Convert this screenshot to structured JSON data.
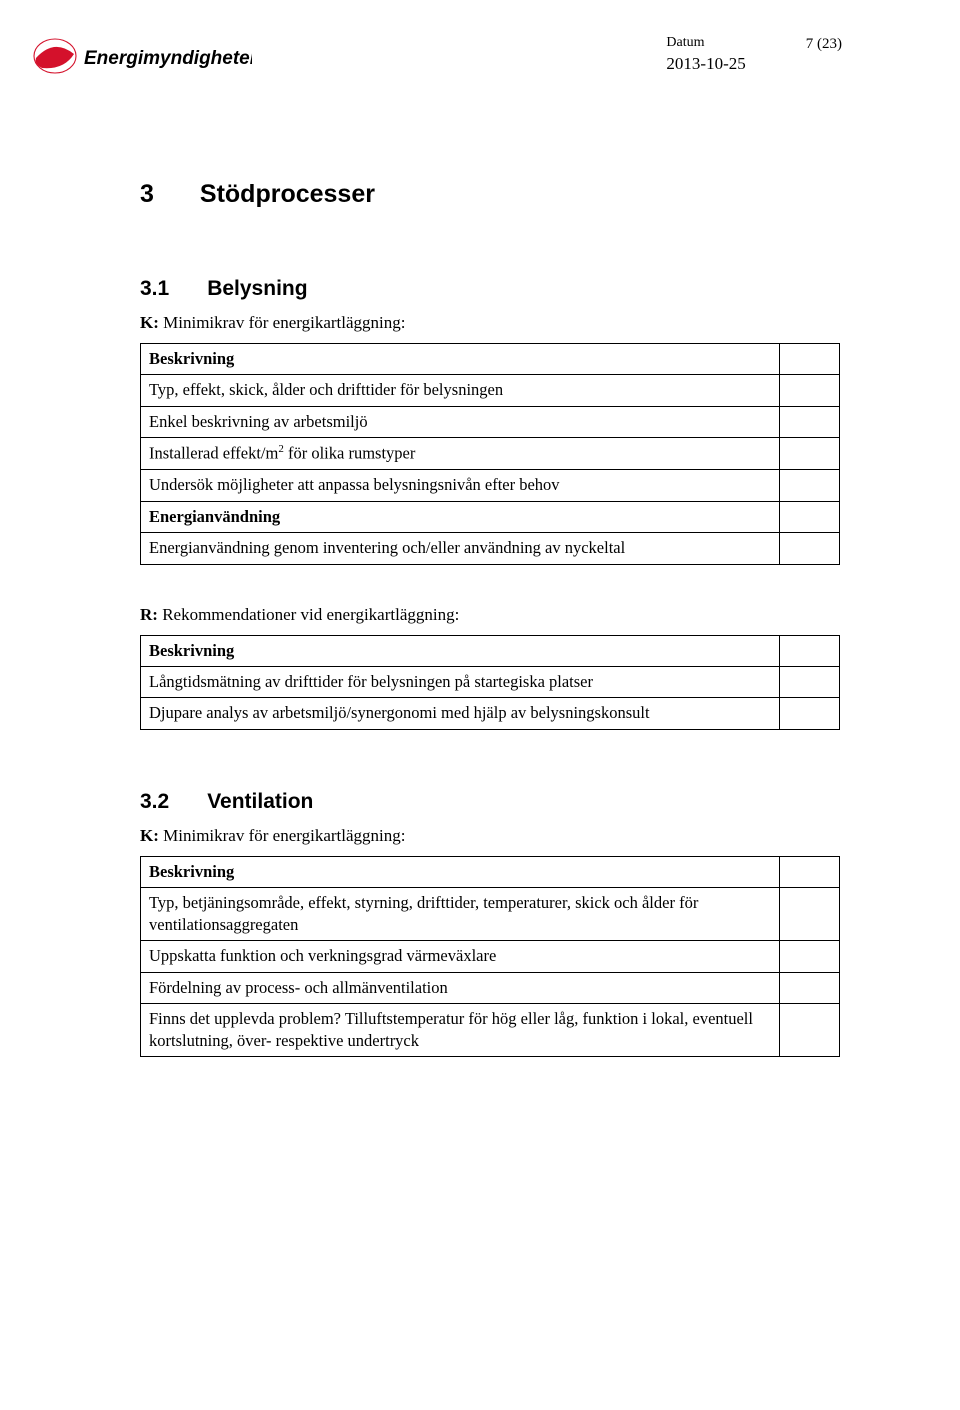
{
  "header": {
    "datum_label": "Datum",
    "datum_value": "2013-10-25",
    "page_num": "7 (23)",
    "logo_text": "Energimyndigheten"
  },
  "section3": {
    "num": "3",
    "title": "Stödprocesser"
  },
  "section31": {
    "num": "3.1",
    "title": "Belysning",
    "k_prefix": "K:",
    "k_text": " Minimikrav för energikartläggning:",
    "table1": {
      "rows": [
        {
          "left": "Beskrivning",
          "bold": true
        },
        {
          "left": "Typ, effekt, skick, ålder och drifttider för belysningen"
        },
        {
          "left": "Enkel beskrivning av arbetsmiljö"
        },
        {
          "left_html": "Installerad effekt/m{SUP2} för olika rumstyper"
        },
        {
          "left": "Undersök möjligheter att anpassa belysningsnivån efter behov"
        },
        {
          "left": "Energianvändning",
          "bold": true
        },
        {
          "left": "Energianvändning genom inventering och/eller användning av nyckeltal"
        }
      ]
    },
    "r_prefix": "R:",
    "r_text": " Rekommendationer vid energikartläggning:",
    "table2": {
      "rows": [
        {
          "left": "Beskrivning",
          "bold": true
        },
        {
          "left": "Långtidsmätning av drifttider för belysningen på startegiska platser"
        },
        {
          "left": "Djupare analys av arbetsmiljö/synergonomi med hjälp av belysningskonsult"
        }
      ]
    }
  },
  "section32": {
    "num": "3.2",
    "title": "Ventilation",
    "k_prefix": "K:",
    "k_text": " Minimikrav för energikartläggning:",
    "table": {
      "rows": [
        {
          "left": "Beskrivning",
          "bold": true
        },
        {
          "left": "Typ, betjäningsområde, effekt, styrning, drifttider, temperaturer, skick och ålder för ventilationsaggregaten"
        },
        {
          "left": "Uppskatta funktion och verkningsgrad värmeväxlare"
        },
        {
          "left": "Fördelning av process- och allmänventilation"
        },
        {
          "left": "Finns det upplevda problem? Tilluftstemperatur för hög eller låg, funktion i lokal, eventuell kortslutning, över- respektive undertryck"
        }
      ]
    }
  },
  "colors": {
    "logo_red": "#d4112b",
    "text": "#000000",
    "border": "#000000",
    "bg": "#ffffff"
  }
}
